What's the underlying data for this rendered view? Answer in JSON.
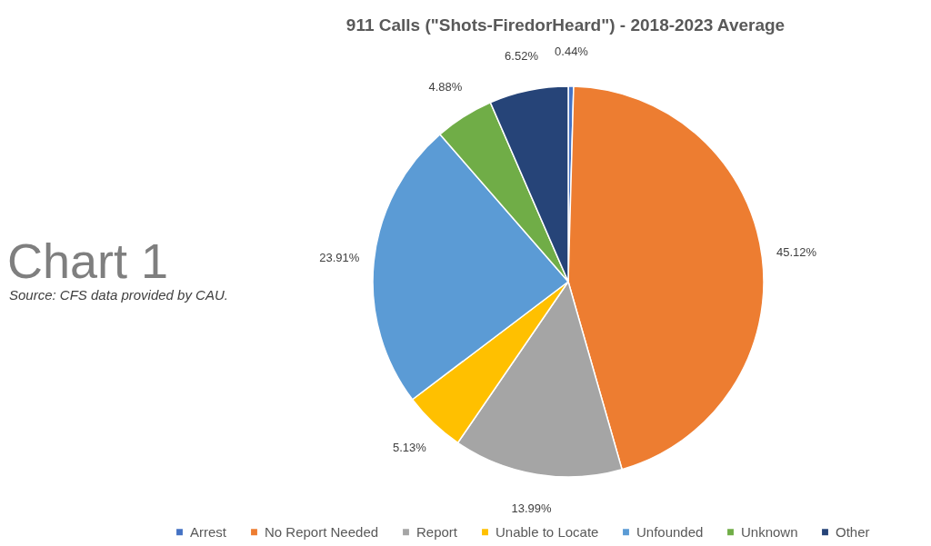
{
  "chart_data": {
    "type": "pie",
    "title": "911 Calls (\"Shots-FiredorHeard\") - 2018-2023 Average",
    "categories": [
      "Arrest",
      "No Report Needed",
      "Report",
      "Unable to Locate",
      "Unfounded",
      "Unknown",
      "Other"
    ],
    "values": [
      0.44,
      45.12,
      13.99,
      5.13,
      23.91,
      4.88,
      6.52
    ],
    "colors": [
      "#4472c4",
      "#ed7d31",
      "#a5a5a5",
      "#ffc000",
      "#5b9bd5",
      "#70ad47",
      "#264478"
    ],
    "value_labels": [
      "0.44%",
      "45.12%",
      "13.99%",
      "5.13%",
      "23.91%",
      "4.88%",
      "6.52%"
    ],
    "legend": "bottom",
    "annotations": [
      "Chart 1",
      "Source: CFS data provided by CAU."
    ]
  }
}
